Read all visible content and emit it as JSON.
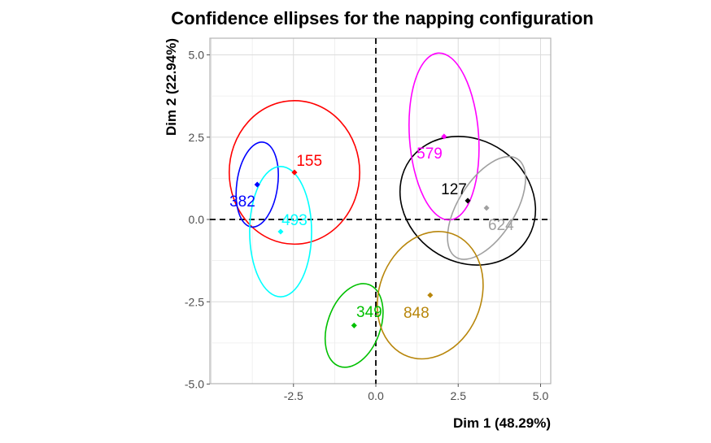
{
  "chart_data": {
    "type": "scatter",
    "title": "Confidence ellipses for the napping configuration",
    "xlabel": "Dim 1 (48.29%)",
    "ylabel": "Dim 2 (22.94%)",
    "xlim": [
      -5.1,
      5.3
    ],
    "ylim": [
      -5.0,
      5.5
    ],
    "xticks": [
      -2.5,
      0.0,
      2.5,
      5.0
    ],
    "xtick_labels": [
      "-2.5",
      "0.0",
      "2.5",
      "5.0"
    ],
    "yticks": [
      -5.0,
      -2.5,
      0.0,
      2.5,
      5.0
    ],
    "ytick_labels": [
      "-5.0",
      "-2.5",
      "0.0",
      "2.5",
      "5.0"
    ],
    "grid": true,
    "reference_lines": {
      "x": 0,
      "y": 0,
      "style": "dashed"
    },
    "points": [
      {
        "label": "127",
        "x": 2.79,
        "y": 0.57,
        "color": "#000000",
        "label_xy": [
          2.37,
          0.94
        ],
        "ellipse": {
          "rx": 2.15,
          "ry": 1.85,
          "angle": 35
        }
      },
      {
        "label": "155",
        "x": -2.47,
        "y": 1.43,
        "color": "#FF0000",
        "label_xy": [
          -2.02,
          1.8
        ],
        "ellipse": {
          "rx": 1.98,
          "ry": 2.18,
          "angle": 0
        }
      },
      {
        "label": "349",
        "x": -0.66,
        "y": -3.22,
        "color": "#00C000",
        "label_xy": [
          -0.2,
          -2.79
        ],
        "ellipse": {
          "rx": 0.8,
          "ry": 1.32,
          "angle": 20
        }
      },
      {
        "label": "382",
        "x": -3.6,
        "y": 1.06,
        "color": "#0000FF",
        "label_xy": [
          -4.05,
          0.57
        ],
        "ellipse": {
          "rx": 0.62,
          "ry": 1.3,
          "angle": 8
        }
      },
      {
        "label": "493",
        "x": -2.89,
        "y": -0.37,
        "color": "#00FFFF",
        "label_xy": [
          -2.47,
          0.0
        ],
        "ellipse": {
          "rx": 0.94,
          "ry": 1.98,
          "angle": 0
        }
      },
      {
        "label": "579",
        "x": 2.07,
        "y": 2.52,
        "color": "#FF00FF",
        "label_xy": [
          1.63,
          2.02
        ],
        "ellipse": {
          "rx": 1.05,
          "ry": 2.54,
          "angle": -4
        }
      },
      {
        "label": "624",
        "x": 3.36,
        "y": 0.35,
        "color": "#A0A0A0",
        "label_xy": [
          3.8,
          -0.15
        ],
        "ellipse": {
          "rx": 1.76,
          "ry": 0.86,
          "angle": -58
        }
      },
      {
        "label": "848",
        "x": 1.65,
        "y": -2.3,
        "color": "#B8860B",
        "label_xy": [
          1.23,
          -2.81
        ],
        "ellipse": {
          "rx": 1.55,
          "ry": 1.98,
          "angle": 20
        }
      }
    ]
  }
}
